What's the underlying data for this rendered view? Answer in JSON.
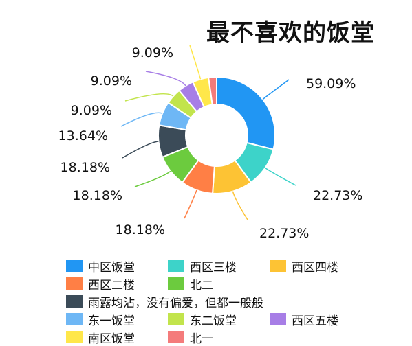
{
  "chart_data": {
    "type": "pie",
    "title": "最不喜欢的饭堂",
    "donut": true,
    "legend_position": "bottom",
    "slices": [
      {
        "name": "中区饭堂",
        "value": 59.09,
        "label": "59.09%",
        "color": "#2196F3"
      },
      {
        "name": "西区三楼",
        "value": 22.73,
        "label": "22.73%",
        "color": "#3DD3C9"
      },
      {
        "name": "西区四楼",
        "value": 22.73,
        "label": "22.73%",
        "color": "#FDC334"
      },
      {
        "name": "西区二楼",
        "value": 18.18,
        "label": "18.18%",
        "color": "#FF7F45"
      },
      {
        "name": "北二",
        "value": 18.18,
        "label": "18.18%",
        "color": "#6CCB3E"
      },
      {
        "name": "雨露均沾，没有偏爱，但都一般般",
        "value": 18.18,
        "label": "18.18%",
        "color": "#3B4B58"
      },
      {
        "name": "东一饭堂",
        "value": 13.64,
        "label": "13.64%",
        "color": "#6EB7F5"
      },
      {
        "name": "东二饭堂",
        "value": 9.09,
        "label": "9.09%",
        "color": "#C2E44C"
      },
      {
        "name": "西区五楼",
        "value": 9.09,
        "label": "9.09%",
        "color": "#A77EE6"
      },
      {
        "name": "南区饭堂",
        "value": 9.09,
        "label": "9.09%",
        "color": "#FFE74A"
      },
      {
        "name": "北一",
        "value": 4.55,
        "label": "",
        "color": "#F47B7B"
      }
    ]
  }
}
